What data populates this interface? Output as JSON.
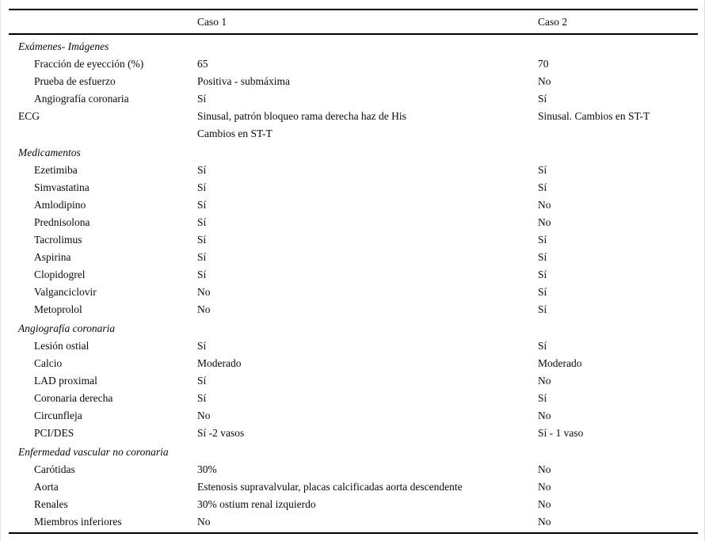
{
  "table": {
    "header": {
      "caso1": "Caso 1",
      "caso2": "Caso 2"
    },
    "sections": [
      {
        "title": "Exámenes- Imágenes",
        "rows": [
          {
            "label": "Fracción de eyección (%)",
            "indent": true,
            "caso1": "65",
            "caso2": "70"
          },
          {
            "label": "Prueba de esfuerzo",
            "indent": true,
            "caso1": "Positiva - submáxima",
            "caso2": "No"
          },
          {
            "label": "Angiografía coronaria",
            "indent": true,
            "caso1": "Sí",
            "caso2": "Sí"
          },
          {
            "label": "ECG",
            "indent": false,
            "caso1": [
              "Sinusal, patrón bloqueo rama derecha haz de His",
              "Cambios en ST-T"
            ],
            "caso2": "Sinusal. Cambios en ST-T"
          }
        ]
      },
      {
        "title": "Medicamentos",
        "rows": [
          {
            "label": "Ezetimiba",
            "indent": true,
            "caso1": "Sí",
            "caso2": "Sí"
          },
          {
            "label": "Simvastatina",
            "indent": true,
            "caso1": "Sí",
            "caso2": "Sí"
          },
          {
            "label": "Amlodipino",
            "indent": true,
            "caso1": "Sí",
            "caso2": "No"
          },
          {
            "label": "Prednisolona",
            "indent": true,
            "caso1": "Sí",
            "caso2": "No"
          },
          {
            "label": "Tacrolimus",
            "indent": true,
            "caso1": "Sí",
            "caso2": "Sí"
          },
          {
            "label": "Aspirina",
            "indent": true,
            "caso1": "Sí",
            "caso2": "Sí"
          },
          {
            "label": "Clopidogrel",
            "indent": true,
            "caso1": "Sí",
            "caso2": "Sí"
          },
          {
            "label": "Valganciclovir",
            "indent": true,
            "caso1": "No",
            "caso2": "Sí"
          },
          {
            "label": "Metoprolol",
            "indent": true,
            "caso1": "No",
            "caso2": "Sí"
          }
        ]
      },
      {
        "title": "Angiografía coronaria",
        "rows": [
          {
            "label": "Lesión ostial",
            "indent": true,
            "caso1": "Sí",
            "caso2": "Sí"
          },
          {
            "label": "Calcio",
            "indent": true,
            "caso1": "Moderado",
            "caso2": "Moderado"
          },
          {
            "label": "LAD proximal",
            "indent": true,
            "caso1": "Sí",
            "caso2": "No"
          },
          {
            "label": "Coronaria derecha",
            "indent": true,
            "caso1": "Sí",
            "caso2": "Sí"
          },
          {
            "label": "Circunfleja",
            "indent": true,
            "caso1": "No",
            "caso2": "No"
          },
          {
            "label": "PCI/DES",
            "indent": true,
            "caso1": "Sí -2 vasos",
            "caso2": "Sí - 1 vaso"
          }
        ]
      },
      {
        "title": "Enfermedad vascular no coronaria",
        "rows": [
          {
            "label": "Carótidas",
            "indent": true,
            "caso1": "30%",
            "caso2": "No"
          },
          {
            "label": "Aorta",
            "indent": true,
            "caso1": "Estenosis supravalvular, placas calcificadas aorta descendente",
            "caso2": "No"
          },
          {
            "label": "Renales",
            "indent": true,
            "caso1": "30% ostium renal izquierdo",
            "caso2": "No"
          },
          {
            "label": "Miembros inferiores",
            "indent": true,
            "caso1": "No",
            "caso2": "No"
          }
        ]
      }
    ]
  }
}
